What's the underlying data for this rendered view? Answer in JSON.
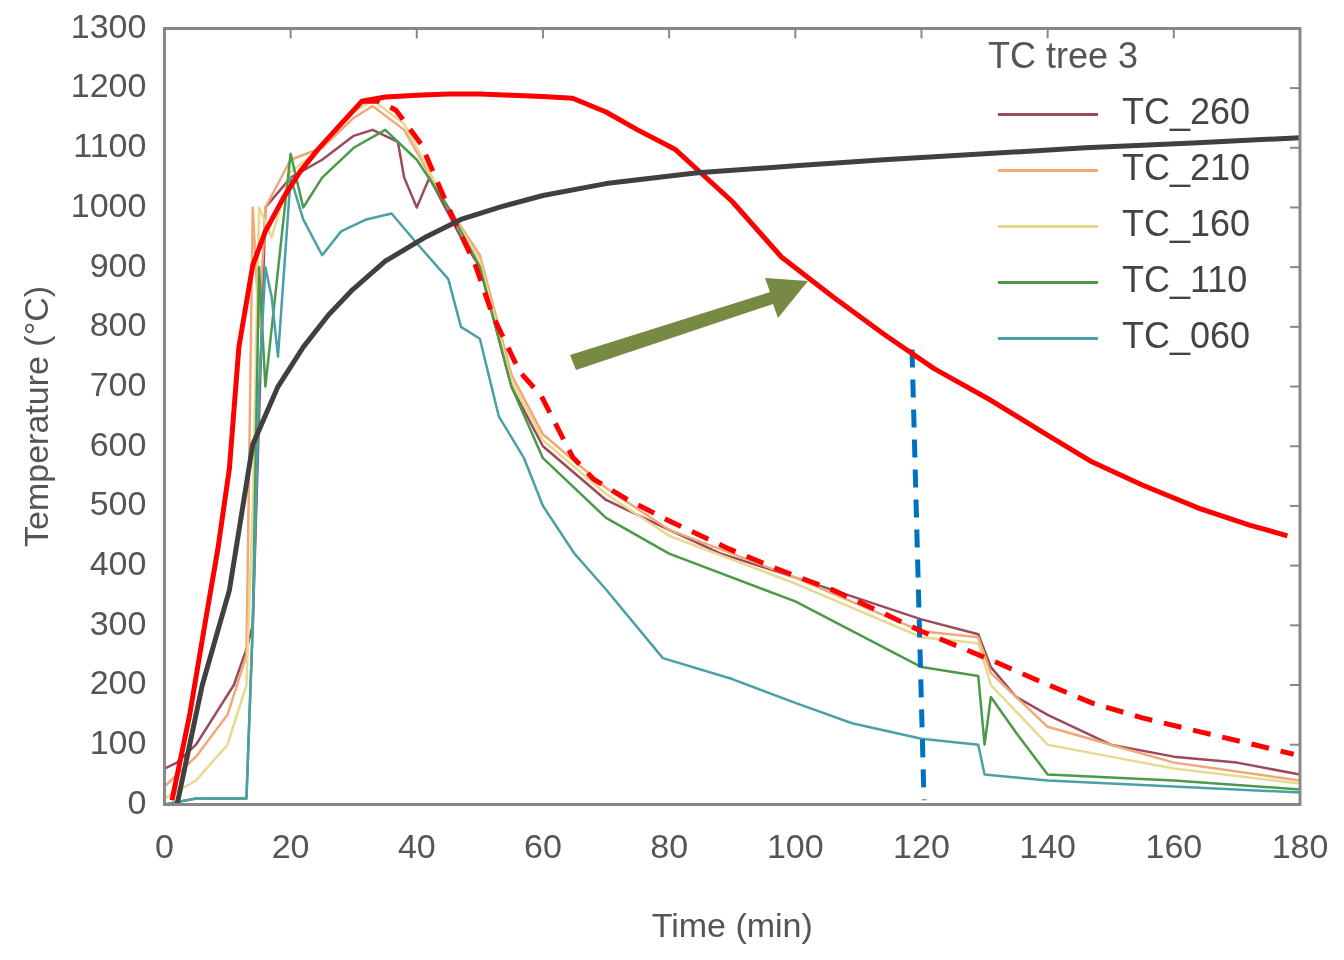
{
  "chart_data": {
    "type": "line",
    "xlabel": "Time (min)",
    "ylabel": "Temperature (°C)",
    "legend_title": "TC tree 3",
    "legend": "top right",
    "grid": false,
    "marker": "none",
    "xlim": [
      0,
      180
    ],
    "xticks": [
      0,
      20,
      40,
      60,
      80,
      100,
      120,
      140,
      160,
      180
    ],
    "ylim": [
      0,
      1300
    ],
    "yticks": [
      0,
      100,
      200,
      300,
      400,
      500,
      600,
      700,
      800,
      900,
      1000,
      1100,
      1200,
      1300
    ],
    "series": [
      {
        "name": "TC_260",
        "color": "#9a4a5a",
        "x": [
          0,
          2,
          5,
          8,
          11,
          13,
          14,
          16,
          20,
          25,
          30,
          33,
          37,
          38,
          40,
          42,
          47,
          50,
          55,
          60,
          70,
          80,
          88,
          100,
          120,
          129,
          131,
          135,
          140,
          150,
          160,
          170,
          180
        ],
        "values": [
          60,
          70,
          100,
          150,
          200,
          260,
          300,
          1000,
          1050,
          1080,
          1120,
          1130,
          1110,
          1050,
          1000,
          1050,
          950,
          900,
          700,
          600,
          510,
          460,
          421,
          380,
          310,
          285,
          230,
          180,
          150,
          100,
          80,
          70,
          50
        ]
      },
      {
        "name": "TC_210",
        "color": "#f0a878",
        "x": [
          0,
          5,
          10,
          13,
          14,
          15,
          16,
          20,
          25,
          30,
          33,
          38,
          45,
          50,
          55,
          60,
          70,
          80,
          100,
          120,
          129,
          131,
          140,
          150,
          160,
          180
        ],
        "values": [
          30,
          80,
          150,
          250,
          1000,
          800,
          1000,
          1080,
          1100,
          1150,
          1170,
          1130,
          1000,
          920,
          720,
          620,
          530,
          460,
          380,
          290,
          280,
          220,
          130,
          100,
          70,
          40
        ]
      },
      {
        "name": "TC_160",
        "color": "#e8d890",
        "x": [
          0,
          5,
          10,
          13,
          14,
          15,
          17,
          20,
          25,
          30,
          33,
          38,
          45,
          50,
          55,
          60,
          70,
          80,
          100,
          120,
          129,
          131,
          140,
          150,
          160,
          180
        ],
        "values": [
          10,
          40,
          100,
          200,
          500,
          1000,
          950,
          1060,
          1100,
          1160,
          1180,
          1140,
          1000,
          910,
          710,
          610,
          520,
          450,
          370,
          280,
          270,
          200,
          100,
          80,
          60,
          35
        ]
      },
      {
        "name": "TC_110",
        "color": "#4a9a4a",
        "x": [
          0,
          5,
          13,
          14,
          15,
          16,
          20,
          22,
          25,
          30,
          35,
          40,
          45,
          50,
          55,
          60,
          70,
          80,
          100,
          120,
          129,
          130,
          131,
          135,
          140,
          160,
          180
        ],
        "values": [
          0,
          10,
          10,
          300,
          900,
          700,
          1090,
          1000,
          1050,
          1100,
          1130,
          1080,
          1000,
          900,
          700,
          580,
          480,
          420,
          340,
          230,
          215,
          100,
          180,
          120,
          50,
          40,
          25
        ]
      },
      {
        "name": "TC_060",
        "color": "#4aa0a8",
        "x": [
          0,
          5,
          13,
          14,
          15,
          16,
          17,
          18,
          20,
          22,
          25,
          28,
          32,
          36,
          40,
          45,
          47,
          50,
          53,
          57,
          60,
          65,
          70,
          79,
          90,
          100,
          109,
          120,
          129,
          130,
          140,
          160,
          180
        ],
        "values": [
          0,
          10,
          10,
          300,
          700,
          900,
          850,
          750,
          1050,
          980,
          920,
          960,
          980,
          990,
          940,
          880,
          800,
          780,
          650,
          580,
          500,
          420,
          360,
          245,
          210,
          170,
          136,
          110,
          100,
          50,
          40,
          30,
          20
        ]
      },
      {
        "color": "#404040",
        "x": [
          2,
          6,
          10.3,
          14,
          18,
          22,
          26,
          29.8,
          35,
          41.5,
          47,
          53.3,
          60,
          70,
          84.5,
          100,
          114,
          130,
          146,
          163,
          180
        ],
        "values": [
          0,
          200,
          359,
          603,
          700,
          766,
          820,
          862,
          910,
          951,
          980,
          1001,
          1020,
          1040,
          1058,
          1070,
          1080,
          1090,
          1100,
          1108,
          1117
        ]
      },
      {
        "color": "#ff0000",
        "x": [
          1.2,
          4,
          6.3,
          8.5,
          10.3,
          11.8,
          14,
          16,
          18.9,
          21.5,
          24.3,
          28,
          31.3,
          35,
          40,
          45,
          50,
          55,
          60,
          64.7,
          70,
          75,
          81,
          90,
          97.8,
          106,
          114,
          122,
          131,
          139,
          147,
          155,
          164,
          172,
          178
        ],
        "values": [
          7,
          150,
          295,
          430,
          563,
          766,
          903,
          960,
          1017,
          1060,
          1097,
          1140,
          1178,
          1185,
          1188,
          1190,
          1190,
          1188,
          1186,
          1183,
          1160,
          1130,
          1097,
          1010,
          917,
          850,
          788,
          730,
          677,
          625,
          574,
          535,
          496,
          468,
          450
        ]
      },
      {
        "color": "#ff0000",
        "line_style": "dashed",
        "x": [
          31.3,
          34,
          36.7,
          40.7,
          45.3,
          49.3,
          52,
          56.3,
          59.7,
          64.7,
          68,
          73,
          80,
          89.5,
          97,
          106,
          113,
          120,
          131,
          139,
          147,
          155,
          164,
          172,
          179
        ],
        "values": [
          1178,
          1178,
          1163,
          1106,
          993,
          903,
          820,
          725,
          685,
          582,
          545,
          513,
          475,
          428,
          395,
          359,
          325,
          290,
          242,
          205,
          170,
          145,
          122,
          102,
          84
        ]
      },
      {
        "color": "#0070c0",
        "line_style": "dashed",
        "x": [
          118.5,
          120.4
        ],
        "values": [
          762,
          7
        ]
      }
    ]
  }
}
